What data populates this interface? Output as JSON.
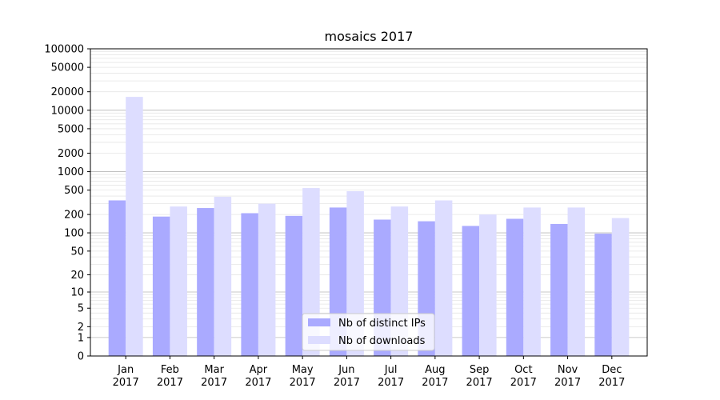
{
  "chart_data": {
    "type": "bar",
    "title": "mosaics 2017",
    "xlabel": "",
    "ylabel": "",
    "yscale": "symlog",
    "ylim": [
      0,
      100000
    ],
    "yticks": [
      0,
      1,
      2,
      5,
      10,
      20,
      50,
      100,
      200,
      500,
      1000,
      2000,
      5000,
      10000,
      20000,
      50000,
      100000
    ],
    "categories": [
      [
        "Jan",
        "2017"
      ],
      [
        "Feb",
        "2017"
      ],
      [
        "Mar",
        "2017"
      ],
      [
        "Apr",
        "2017"
      ],
      [
        "May",
        "2017"
      ],
      [
        "Jun",
        "2017"
      ],
      [
        "Jul",
        "2017"
      ],
      [
        "Aug",
        "2017"
      ],
      [
        "Sep",
        "2017"
      ],
      [
        "Oct",
        "2017"
      ],
      [
        "Nov",
        "2017"
      ],
      [
        "Dec",
        "2017"
      ]
    ],
    "series": [
      {
        "name": "Nb of distinct IPs",
        "color": "#aaaaff",
        "values": [
          340,
          185,
          255,
          210,
          190,
          260,
          165,
          155,
          130,
          170,
          140,
          97
        ]
      },
      {
        "name": "Nb of downloads",
        "color": "#ddddff",
        "values": [
          16500,
          270,
          390,
          300,
          540,
          480,
          270,
          340,
          200,
          260,
          260,
          175
        ]
      }
    ],
    "grid": true,
    "legend_position": "bottom-center"
  }
}
